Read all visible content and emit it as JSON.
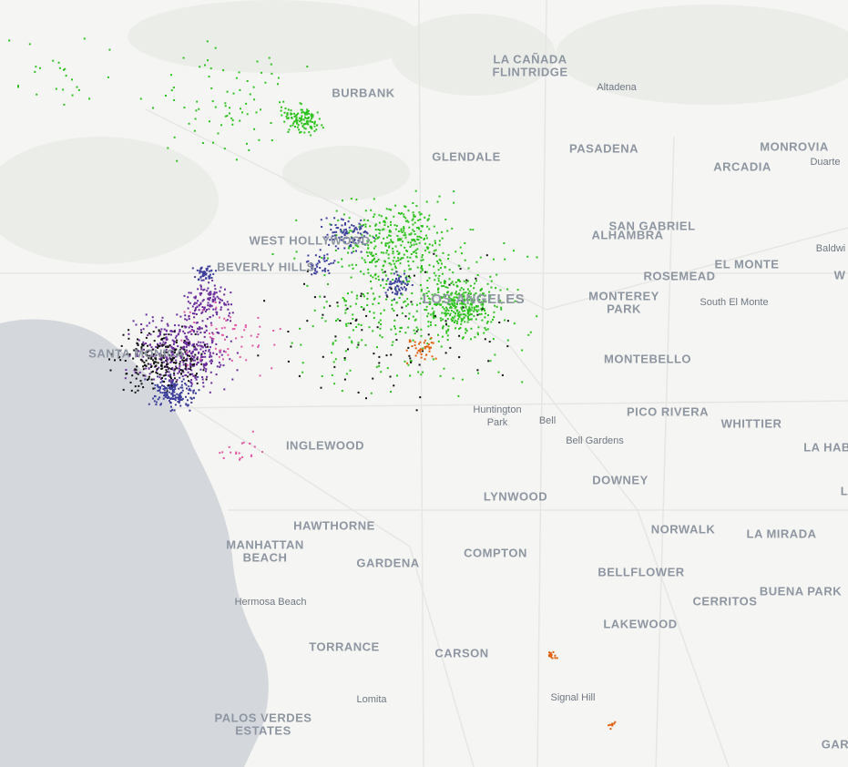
{
  "places": [
    [
      "LA CAÑADA",
      "FLINTRIDGE"
    ],
    [
      "Altadena"
    ],
    [
      "BURBANK"
    ],
    [
      "GLENDALE"
    ],
    [
      "PASADENA"
    ],
    [
      "MONROVIA"
    ],
    [
      "ARCADIA"
    ],
    [
      "Duarte"
    ],
    [
      "SAN GABRIEL"
    ],
    [
      "ALHAMBRA"
    ],
    [
      "Baldwi"
    ],
    [
      "EL MONTE"
    ],
    [
      "ROSEMEAD"
    ],
    [
      "W"
    ],
    [
      "South El Monte"
    ],
    [
      "MONTEREY",
      "PARK"
    ],
    [
      "WEST HOLLYWOOD"
    ],
    [
      "BEVERLY HILLS"
    ],
    [
      "LOS ANGELES"
    ],
    [
      "SANTA MONICA"
    ],
    [
      "MONTEBELLO"
    ],
    [
      "Huntington",
      "Park"
    ],
    [
      "Bell"
    ],
    [
      "PICO RIVERA"
    ],
    [
      "WHITTIER"
    ],
    [
      "LA HAB"
    ],
    [
      "Bell Gardens"
    ],
    [
      "INGLEWOOD"
    ],
    [
      "DOWNEY"
    ],
    [
      "LYNWOOD"
    ],
    [
      "L"
    ],
    [
      "HAWTHORNE"
    ],
    [
      "NORWALK"
    ],
    [
      "LA MIRADA"
    ],
    [
      "MANHATTAN",
      "BEACH"
    ],
    [
      "COMPTON"
    ],
    [
      "GARDENA"
    ],
    [
      "BELLFLOWER"
    ],
    [
      "BUENA PARK"
    ],
    [
      "CERRITOS"
    ],
    [
      "Hermosa Beach"
    ],
    [
      "LAKEWOOD"
    ],
    [
      "TORRANCE"
    ],
    [
      "CARSON"
    ],
    [
      "Signal Hill"
    ],
    [
      "Lomita"
    ],
    [
      "PALOS VERDES",
      "ESTATES"
    ],
    [
      "GAR"
    ]
  ]
}
